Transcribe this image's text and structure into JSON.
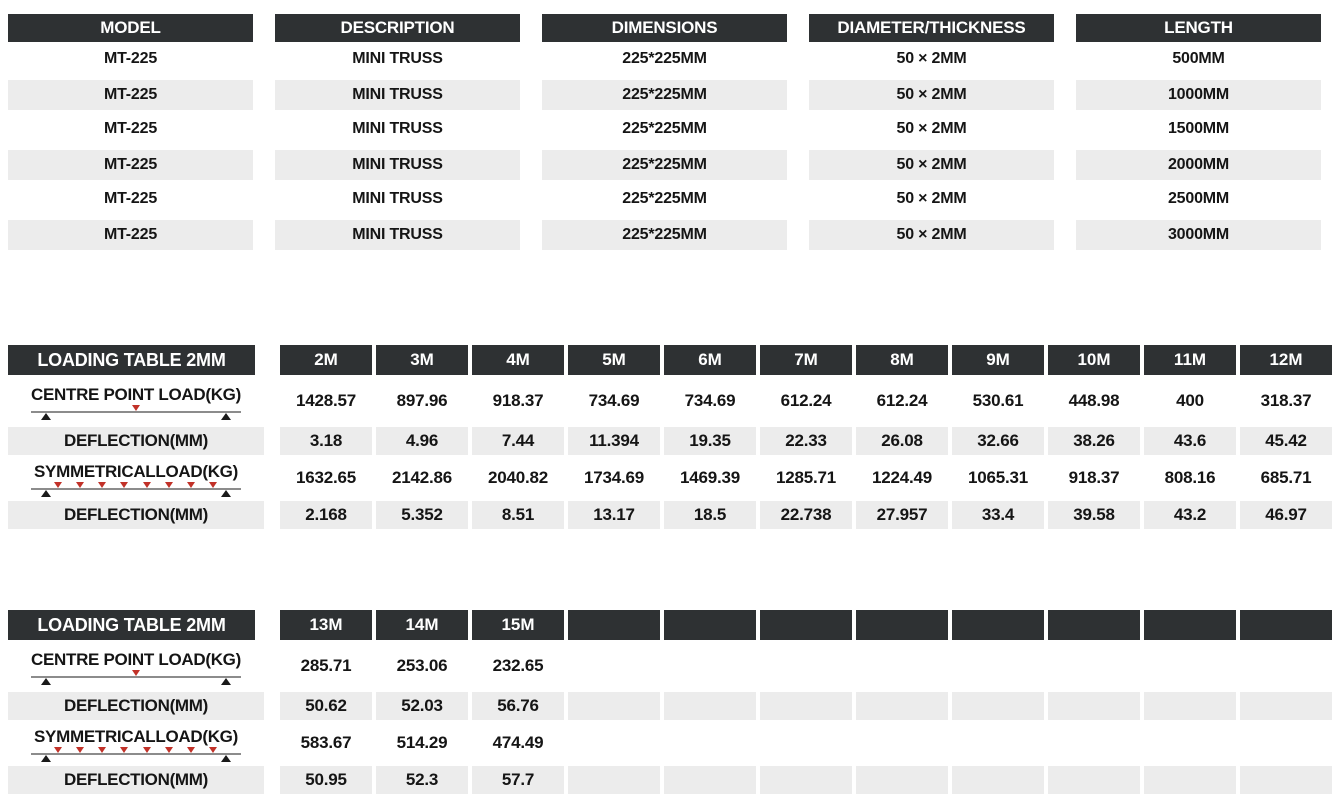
{
  "colors": {
    "header_dark": "#2e3133",
    "row_gray": "#ececec",
    "load_arrow_red": "#c13128",
    "beam_line_gray": "#8c8c8c",
    "support_black": "#1a1a1a",
    "text_black": "#151515",
    "header_text_white": "#ffffff"
  },
  "spec_table": {
    "headers": [
      "MODEL",
      "DESCRIPTION",
      "DIMENSIONS",
      "DIAMETER/THICKNESS",
      "LENGTH"
    ],
    "rows": [
      [
        "MT-225",
        "MINI TRUSS",
        "225*225MM",
        "50 × 2MM",
        "500MM"
      ],
      [
        "MT-225",
        "MINI TRUSS",
        "225*225MM",
        "50 × 2MM",
        "1000MM"
      ],
      [
        "MT-225",
        "MINI TRUSS",
        "225*225MM",
        "50 × 2MM",
        "1500MM"
      ],
      [
        "MT-225",
        "MINI TRUSS",
        "225*225MM",
        "50 × 2MM",
        "2000MM"
      ],
      [
        "MT-225",
        "MINI TRUSS",
        "225*225MM",
        "50 × 2MM",
        "2500MM"
      ],
      [
        "MT-225",
        "MINI TRUSS",
        "225*225MM",
        "50 × 2MM",
        "3000MM"
      ]
    ]
  },
  "loading_tables": [
    {
      "title": "LOADING TABLE 2MM",
      "spans": [
        "2M",
        "3M",
        "4M",
        "5M",
        "6M",
        "7M",
        "8M",
        "9M",
        "10M",
        "11M",
        "12M"
      ],
      "rows": [
        {
          "label": "CENTRE POINT LOAD(KG)",
          "diagram": "centre-point-load-icon",
          "values": [
            "1428.57",
            "897.96",
            "918.37",
            "734.69",
            "734.69",
            "612.24",
            "612.24",
            "530.61",
            "448.98",
            "400",
            "318.37"
          ]
        },
        {
          "label": "DEFLECTION(MM)",
          "diagram": "",
          "values": [
            "3.18",
            "4.96",
            "7.44",
            "11.394",
            "19.35",
            "22.33",
            "26.08",
            "32.66",
            "38.26",
            "43.6",
            "45.42"
          ]
        },
        {
          "label": "SYMMETRICALLOAD(KG)",
          "diagram": "symmetrical-load-icon",
          "values": [
            "1632.65",
            "2142.86",
            "2040.82",
            "1734.69",
            "1469.39",
            "1285.71",
            "1224.49",
            "1065.31",
            "918.37",
            "808.16",
            "685.71"
          ]
        },
        {
          "label": "DEFLECTION(MM)",
          "diagram": "",
          "values": [
            "2.168",
            "5.352",
            "8.51",
            "13.17",
            "18.5",
            "22.738",
            "27.957",
            "33.4",
            "39.58",
            "43.2",
            "46.97"
          ]
        }
      ]
    },
    {
      "title": "LOADING TABLE 2MM",
      "spans": [
        "13M",
        "14M",
        "15M",
        "",
        "",
        "",
        "",
        "",
        "",
        "",
        ""
      ],
      "rows": [
        {
          "label": "CENTRE POINT LOAD(KG)",
          "diagram": "centre-point-load-icon",
          "values": [
            "285.71",
            "253.06",
            "232.65",
            "",
            "",
            "",
            "",
            "",
            "",
            "",
            ""
          ]
        },
        {
          "label": "DEFLECTION(MM)",
          "diagram": "",
          "values": [
            "50.62",
            "52.03",
            "56.76",
            "",
            "",
            "",
            "",
            "",
            "",
            "",
            ""
          ]
        },
        {
          "label": "SYMMETRICALLOAD(KG)",
          "diagram": "symmetrical-load-icon",
          "values": [
            "583.67",
            "514.29",
            "474.49",
            "",
            "",
            "",
            "",
            "",
            "",
            "",
            ""
          ]
        },
        {
          "label": "DEFLECTION(MM)",
          "diagram": "",
          "values": [
            "50.95",
            "52.3",
            "57.7",
            "",
            "",
            "",
            "",
            "",
            "",
            "",
            ""
          ]
        }
      ]
    }
  ]
}
